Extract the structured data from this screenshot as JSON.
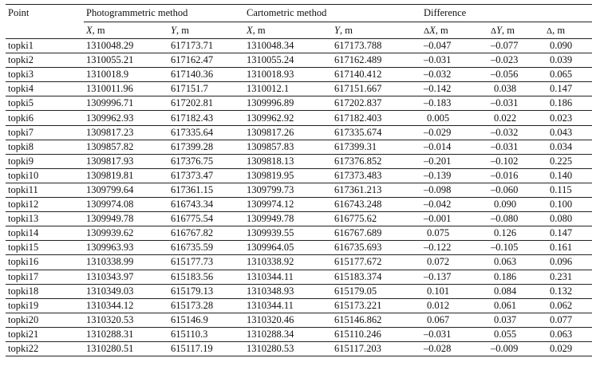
{
  "header": {
    "point": "Point",
    "group_photo": "Photogrammetric method",
    "group_carto": "Cartometric method",
    "group_diff": "Difference",
    "cols": [
      {
        "sym": "X",
        "unit": ", m"
      },
      {
        "sym": "Y",
        "unit": ", m"
      },
      {
        "sym": "X",
        "unit": ", m"
      },
      {
        "sym": "Y",
        "unit": ", m"
      },
      {
        "pre": "Δ",
        "sym": "X",
        "unit": ", m"
      },
      {
        "pre": "Δ",
        "sym": "Y",
        "unit": ", m"
      },
      {
        "pre": "Δ",
        "sym": "",
        "unit": ", m"
      }
    ]
  },
  "rows": [
    [
      "topki1",
      "1310048.29",
      "617173.71",
      "1310048.34",
      "617173.788",
      "–0.047",
      "–0.077",
      "0.090"
    ],
    [
      "topki2",
      "1310055.21",
      "617162.47",
      "1310055.24",
      "617162.489",
      "–0.031",
      "–0.023",
      "0.039"
    ],
    [
      "topki3",
      "1310018.9",
      "617140.36",
      "1310018.93",
      "617140.412",
      "–0.032",
      "–0.056",
      "0.065"
    ],
    [
      "topki4",
      "1310011.96",
      "617151.7",
      "1310012.1",
      "617151.667",
      "–0.142",
      "0.038",
      "0.147"
    ],
    [
      "topki5",
      "1309996.71",
      "617202.81",
      "1309996.89",
      "617202.837",
      "–0.183",
      "–0.031",
      "0.186"
    ],
    [
      "topki6",
      "1309962.93",
      "617182.43",
      "1309962.92",
      "617182.403",
      "0.005",
      "0.022",
      "0.023"
    ],
    [
      "topki7",
      "1309817.23",
      "617335.64",
      "1309817.26",
      "617335.674",
      "–0.029",
      "–0.032",
      "0.043"
    ],
    [
      "topki8",
      "1309857.82",
      "617399.28",
      "1309857.83",
      "617399.31",
      "–0.014",
      "–0.031",
      "0.034"
    ],
    [
      "topki9",
      "1309817.93",
      "617376.75",
      "1309818.13",
      "617376.852",
      "–0.201",
      "–0.102",
      "0.225"
    ],
    [
      "topki10",
      "1309819.81",
      "617373.47",
      "1309819.95",
      "617373.483",
      "–0.139",
      "–0.016",
      "0.140"
    ],
    [
      "topki11",
      "1309799.64",
      "617361.15",
      "1309799.73",
      "617361.213",
      "–0.098",
      "–0.060",
      "0.115"
    ],
    [
      "topki12",
      "1309974.08",
      "616743.34",
      "1309974.12",
      "616743.248",
      "–0.042",
      "0.090",
      "0.100"
    ],
    [
      "topki13",
      "1309949.78",
      "616775.54",
      "1309949.78",
      "616775.62",
      "–0.001",
      "–0.080",
      "0.080"
    ],
    [
      "topki14",
      "1309939.62",
      "616767.82",
      "1309939.55",
      "616767.689",
      "0.075",
      "0.126",
      "0.147"
    ],
    [
      "topki15",
      "1309963.93",
      "616735.59",
      "1309964.05",
      "616735.693",
      "–0.122",
      "–0.105",
      "0.161"
    ],
    [
      "topki16",
      "1310338.99",
      "615177.73",
      "1310338.92",
      "615177.672",
      "0.072",
      "0.063",
      "0.096"
    ],
    [
      "topki17",
      "1310343.97",
      "615183.56",
      "1310344.11",
      "615183.374",
      "–0.137",
      "0.186",
      "0.231"
    ],
    [
      "topki18",
      "1310349.03",
      "615179.13",
      "1310348.93",
      "615179.05",
      "0.101",
      "0.084",
      "0.132"
    ],
    [
      "topki19",
      "1310344.12",
      "615173.28",
      "1310344.11",
      "615173.221",
      "0.012",
      "0.061",
      "0.062"
    ],
    [
      "topki20",
      "1310320.53",
      "615146.9",
      "1310320.46",
      "615146.862",
      "0.067",
      "0.037",
      "0.077"
    ],
    [
      "topki21",
      "1310288.31",
      "615110.3",
      "1310288.34",
      "615110.246",
      "–0.031",
      "0.055",
      "0.063"
    ],
    [
      "topki22",
      "1310280.51",
      "615117.19",
      "1310280.53",
      "615117.203",
      "–0.028",
      "–0.009",
      "0.029"
    ]
  ]
}
